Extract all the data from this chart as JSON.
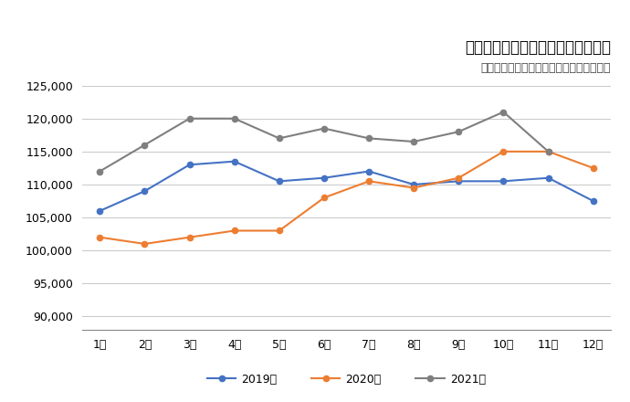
{
  "title": "建設技能工の有効求人数の月別推移",
  "subtitle": "厚生労働省「一般職業紹介状況」より作成",
  "months": [
    "1月",
    "2月",
    "3月",
    "4月",
    "5月",
    "6月",
    "7月",
    "8月",
    "9月",
    "10月",
    "11月",
    "12月"
  ],
  "series_order": [
    "2019年",
    "2020年",
    "2021年"
  ],
  "series": {
    "2019年": {
      "values": [
        106000,
        109000,
        113000,
        113500,
        110500,
        111000,
        112000,
        110000,
        110500,
        110500,
        111000,
        107500
      ],
      "color": "#4472C4",
      "marker": "o"
    },
    "2020年": {
      "values": [
        102000,
        101000,
        102000,
        103000,
        103000,
        108000,
        110500,
        109500,
        111000,
        115000,
        115000,
        112500
      ],
      "color": "#ED7D31",
      "marker": "o"
    },
    "2021年": {
      "values": [
        112000,
        116000,
        120000,
        120000,
        117000,
        118500,
        117000,
        116500,
        118000,
        121000,
        115000,
        null
      ],
      "color": "#7F7F7F",
      "marker": "o"
    }
  },
  "ylim": [
    88000,
    127000
  ],
  "yticks": [
    90000,
    95000,
    100000,
    105000,
    110000,
    115000,
    120000,
    125000
  ],
  "background_color": "#FFFFFF",
  "grid_color": "#C8C8C8",
  "title_fontsize": 12,
  "subtitle_fontsize": 9,
  "tick_fontsize": 9,
  "legend_fontsize": 9,
  "ylabel_fontsize": 9
}
